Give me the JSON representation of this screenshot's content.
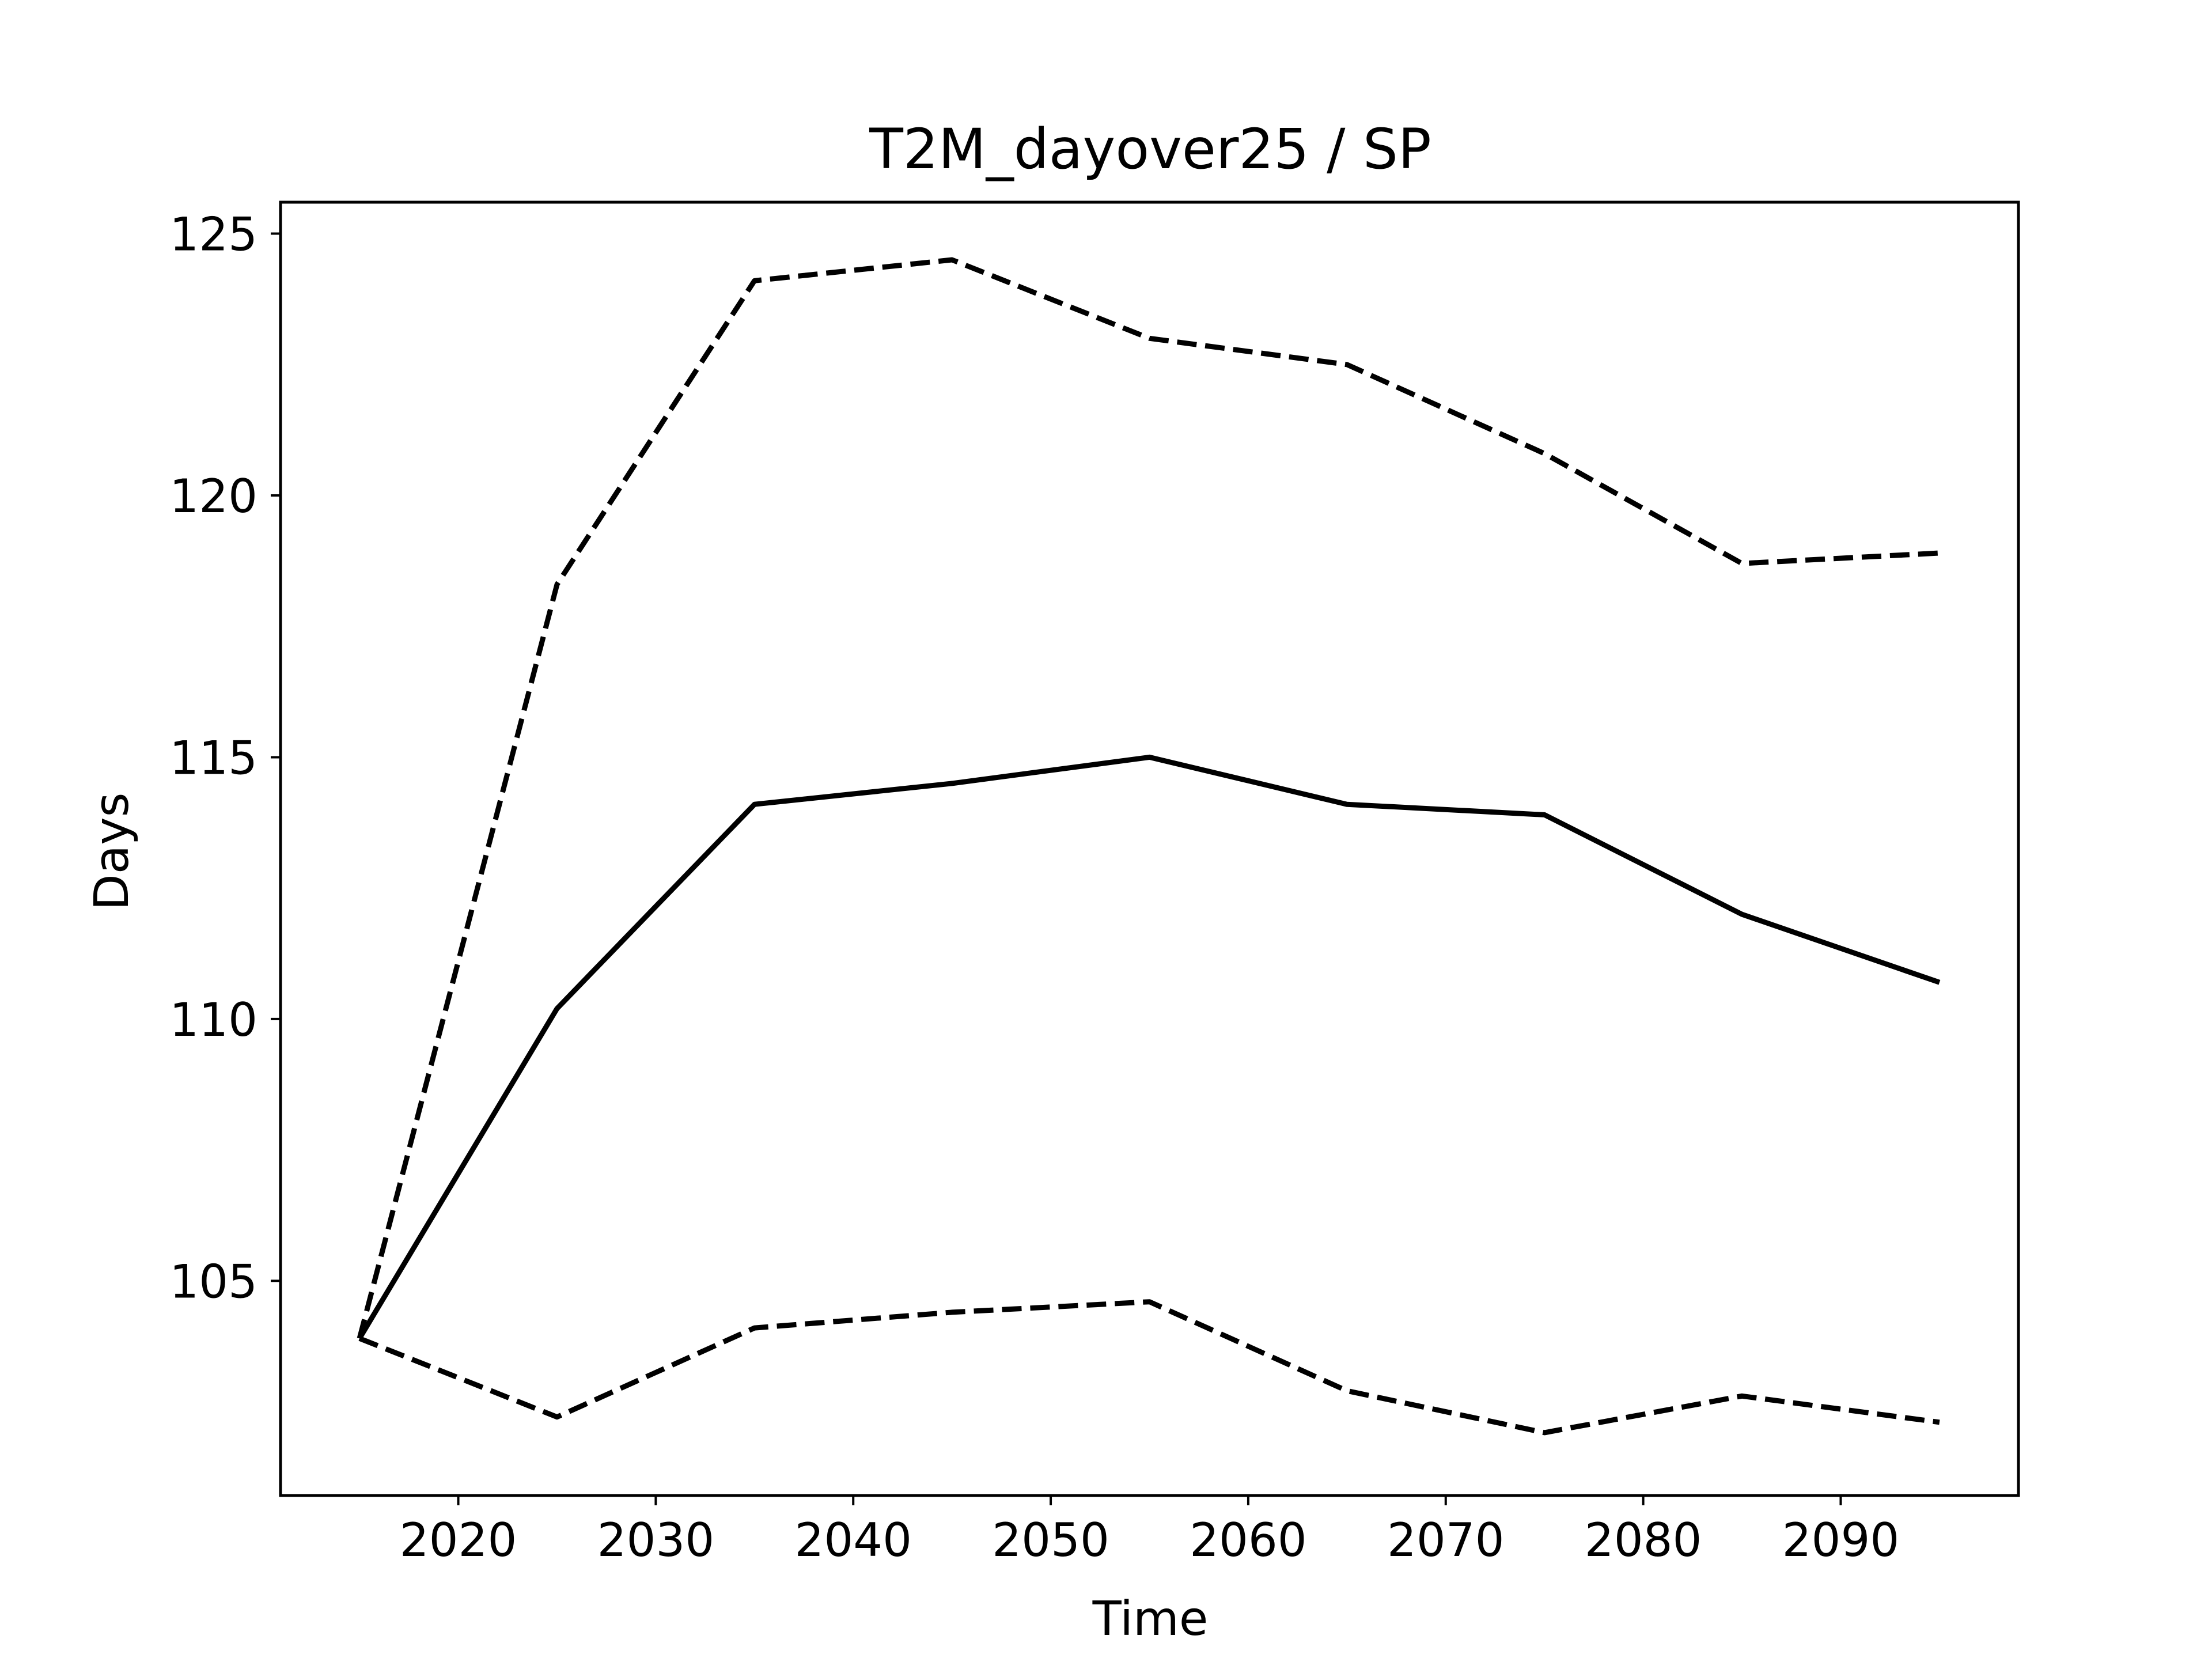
{
  "chart_data": {
    "type": "line",
    "title": "T2M_dayover25 / SP",
    "xlabel": "Time",
    "ylabel": "Days",
    "xlim": [
      2011,
      2099
    ],
    "ylim": [
      100.9,
      125.6
    ],
    "xticks": [
      2020,
      2030,
      2040,
      2050,
      2060,
      2070,
      2080,
      2090
    ],
    "yticks": [
      105,
      110,
      115,
      120,
      125
    ],
    "grid": false,
    "legend": null,
    "x": [
      2015,
      2025,
      2035,
      2045,
      2055,
      2065,
      2075,
      2085,
      2095
    ],
    "series": [
      {
        "style": "dashed",
        "color": "#000000",
        "values": [
          103.9,
          118.3,
          124.1,
          124.5,
          123.0,
          122.5,
          120.8,
          118.7,
          118.9
        ]
      },
      {
        "style": "solid",
        "color": "#000000",
        "values": [
          103.9,
          110.2,
          114.1,
          114.5,
          115.0,
          114.1,
          113.9,
          112.0,
          110.7
        ]
      },
      {
        "style": "dashed",
        "color": "#000000",
        "values": [
          103.9,
          102.4,
          104.1,
          104.4,
          104.6,
          102.9,
          102.1,
          102.8,
          102.3
        ]
      }
    ]
  }
}
